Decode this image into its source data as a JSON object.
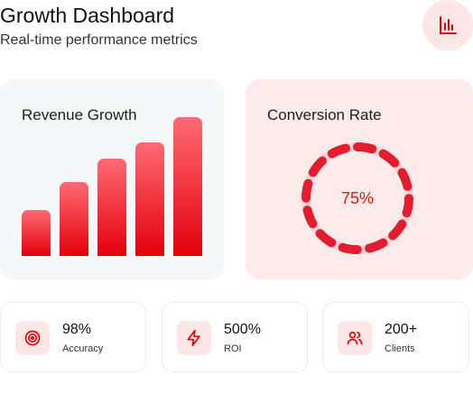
{
  "header": {
    "title": "Growth Dashboard",
    "subtitle": "Real-time performance metrics",
    "icon": "bar-chart-icon"
  },
  "revenue_card": {
    "title": "Revenue Growth"
  },
  "conversion_card": {
    "title": "Conversion Rate",
    "value_label": "75%",
    "value": 75
  },
  "chart_data": [
    {
      "type": "bar",
      "title": "Revenue Growth",
      "categories": [
        "",
        "",
        "",
        "",
        ""
      ],
      "values": [
        33,
        53,
        70,
        82,
        100
      ],
      "ylim": [
        0,
        100
      ],
      "grid": false,
      "color": "#e3000b"
    }
  ],
  "stats": [
    {
      "value": "98%",
      "label": "Accuracy",
      "icon": "target-icon"
    },
    {
      "value": "500%",
      "label": "ROI",
      "icon": "lightning-icon"
    },
    {
      "value": "200+",
      "label": "Clients",
      "icon": "users-icon"
    }
  ],
  "colors": {
    "accent": "#e3000b",
    "accent_light": "#ff6a73",
    "tint": "#fde6e6",
    "card_bg": "#f6f7f9"
  }
}
